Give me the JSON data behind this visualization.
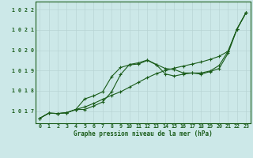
{
  "title": "Graphe pression niveau de la mer (hPa)",
  "bg_color": "#cce8e8",
  "grid_color_minor": "#c0dede",
  "grid_color_major": "#a8c8c8",
  "line_color": "#1a5c1a",
  "x_ticks": [
    0,
    1,
    2,
    3,
    4,
    5,
    6,
    7,
    8,
    9,
    10,
    11,
    12,
    13,
    14,
    15,
    16,
    17,
    18,
    19,
    20,
    21,
    22,
    23
  ],
  "ylim": [
    1016.4,
    1022.4
  ],
  "yticks": [
    1017,
    1018,
    1019,
    1020,
    1021,
    1022
  ],
  "series": [
    [
      1016.65,
      1016.9,
      1016.88,
      1016.92,
      1017.08,
      1017.2,
      1017.38,
      1017.58,
      1017.78,
      1017.95,
      1018.18,
      1018.42,
      1018.65,
      1018.85,
      1019.0,
      1019.12,
      1019.22,
      1019.32,
      1019.42,
      1019.55,
      1019.7,
      1019.95,
      1021.05,
      1021.85
    ],
    [
      1016.65,
      1016.9,
      1016.88,
      1016.92,
      1017.08,
      1017.6,
      1017.75,
      1017.95,
      1018.7,
      1019.15,
      1019.28,
      1019.32,
      1019.5,
      1019.28,
      1018.83,
      1018.73,
      1018.82,
      1018.88,
      1018.88,
      1018.98,
      1019.25,
      1019.95,
      1021.05,
      1021.85
    ],
    [
      1016.65,
      1016.9,
      1016.88,
      1016.92,
      1017.08,
      1017.08,
      1017.25,
      1017.45,
      1017.95,
      1018.8,
      1019.3,
      1019.38,
      1019.52,
      1019.3,
      1019.1,
      1019.05,
      1018.88,
      1018.88,
      1018.82,
      1018.95,
      1019.1,
      1019.85,
      1021.05,
      1021.85
    ]
  ]
}
